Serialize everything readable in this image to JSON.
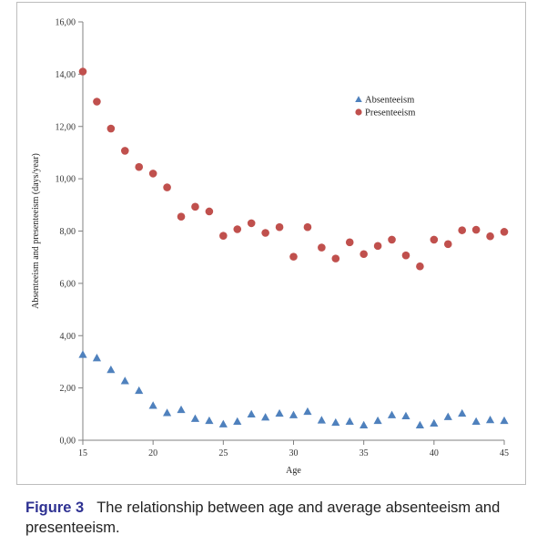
{
  "chart_data": {
    "type": "scatter",
    "xlabel": "Age",
    "ylabel": "Absenteeism and presenteeism (days/year)",
    "xlim": [
      15,
      45
    ],
    "ylim": [
      0,
      16
    ],
    "x_ticks": [
      "15",
      "20",
      "25",
      "30",
      "35",
      "40",
      "45"
    ],
    "y_ticks": [
      "0,00",
      "2,00",
      "4,00",
      "6,00",
      "8,00",
      "10,00",
      "12,00",
      "14,00",
      "16,00"
    ],
    "legend_position": "top-right",
    "series": [
      {
        "name": "Absenteeism",
        "marker": "triangle",
        "color": "#4f81bd",
        "x": [
          15,
          16,
          17,
          18,
          19,
          20,
          21,
          22,
          23,
          24,
          25,
          26,
          27,
          28,
          29,
          30,
          31,
          32,
          33,
          34,
          35,
          36,
          37,
          38,
          39,
          40,
          41,
          42,
          43,
          44,
          45
        ],
        "y": [
          3.28,
          3.15,
          2.7,
          2.27,
          1.9,
          1.33,
          1.05,
          1.17,
          0.83,
          0.75,
          0.62,
          0.72,
          1.0,
          0.88,
          1.03,
          0.97,
          1.1,
          0.77,
          0.68,
          0.72,
          0.58,
          0.75,
          0.97,
          0.93,
          0.58,
          0.65,
          0.9,
          1.03,
          0.72,
          0.78,
          0.75
        ]
      },
      {
        "name": "Presenteeism",
        "marker": "circle",
        "color": "#c0504d",
        "x": [
          15,
          16,
          17,
          18,
          19,
          20,
          21,
          22,
          23,
          24,
          25,
          26,
          27,
          28,
          29,
          30,
          31,
          32,
          33,
          34,
          35,
          36,
          37,
          38,
          39,
          40,
          41,
          42,
          43,
          44,
          45
        ],
        "y": [
          14.1,
          12.95,
          11.92,
          11.07,
          10.45,
          10.2,
          9.67,
          8.55,
          8.93,
          8.75,
          7.82,
          8.07,
          8.3,
          7.93,
          8.15,
          7.02,
          8.15,
          7.37,
          6.95,
          7.57,
          7.12,
          7.43,
          7.67,
          7.07,
          6.65,
          7.67,
          7.5,
          8.03,
          8.05,
          7.8,
          7.97
        ]
      }
    ]
  },
  "caption": {
    "label": "Figure 3",
    "text": "The relationship between age and average absenteeism and presenteeism."
  }
}
